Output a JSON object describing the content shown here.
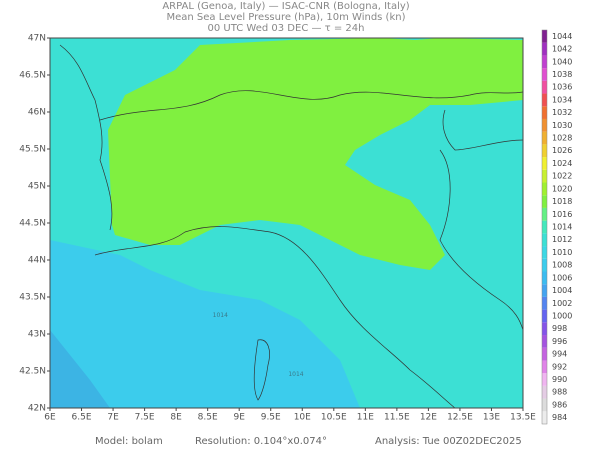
{
  "header": {
    "lines": [
      "ARPAL (Genoa, Italy)  —  ISAC-CNR (Bologna, Italy)",
      "Mean Sea Level Pressure (hPa), 10m Winds (kn)",
      "00 UTC Wed 03 DEC  —  τ = 24h"
    ]
  },
  "map": {
    "lonlim": [
      6,
      13.5
    ],
    "latlim": [
      42,
      47
    ],
    "lon_ticks": [
      {
        "value": 6,
        "label": "6E"
      },
      {
        "value": 6.5,
        "label": "6.5E"
      },
      {
        "value": 7,
        "label": "7E"
      },
      {
        "value": 7.5,
        "label": "7.5E"
      },
      {
        "value": 8,
        "label": "8E"
      },
      {
        "value": 8.5,
        "label": "8.5E"
      },
      {
        "value": 9,
        "label": "9E"
      },
      {
        "value": 9.5,
        "label": "9.5E"
      },
      {
        "value": 10,
        "label": "10E"
      },
      {
        "value": 10.5,
        "label": "10.5E"
      },
      {
        "value": 11,
        "label": "11E"
      },
      {
        "value": 11.5,
        "label": "11.5E"
      },
      {
        "value": 12,
        "label": "12E"
      },
      {
        "value": 12.5,
        "label": "12.5E"
      },
      {
        "value": 13,
        "label": "13E"
      },
      {
        "value": 13.5,
        "label": "13.5E"
      }
    ],
    "lat_ticks": [
      {
        "value": 42,
        "label": "42N"
      },
      {
        "value": 42.5,
        "label": "42.5N"
      },
      {
        "value": 43,
        "label": "43N"
      },
      {
        "value": 43.5,
        "label": "43.5N"
      },
      {
        "value": 44,
        "label": "44N"
      },
      {
        "value": 44.5,
        "label": "44.5N"
      },
      {
        "value": 45,
        "label": "45N"
      },
      {
        "value": 45.5,
        "label": "45.5N"
      },
      {
        "value": 46,
        "label": "46N"
      },
      {
        "value": 46.5,
        "label": "46.5N"
      },
      {
        "value": 47,
        "label": "47N"
      }
    ],
    "contour_labels": [
      {
        "lon": 8.7,
        "lat": 43.25,
        "label": "1014"
      },
      {
        "lon": 9.9,
        "lat": 42.45,
        "label": "1014"
      }
    ]
  },
  "colorbar": {
    "levels": [
      984,
      986,
      988,
      990,
      992,
      994,
      996,
      998,
      1000,
      1002,
      1004,
      1006,
      1008,
      1010,
      1012,
      1014,
      1016,
      1018,
      1020,
      1022,
      1024,
      1026,
      1028,
      1030,
      1032,
      1034,
      1036,
      1038,
      1040,
      1042,
      1044
    ],
    "colors": [
      "#ececec",
      "#dcdcdc",
      "#e4cce4",
      "#f0b4f0",
      "#e084e8",
      "#c464e0",
      "#a454e0",
      "#8454e8",
      "#6464f0",
      "#5484f0",
      "#44a4f0",
      "#3cbcf0",
      "#3cccec",
      "#3cd8e4",
      "#3ce0d4",
      "#44e8bc",
      "#64f084",
      "#80f040",
      "#a0f030",
      "#c8f030",
      "#f0f030",
      "#f0d030",
      "#f0b030",
      "#f09030",
      "#f07030",
      "#f05050",
      "#f050a0",
      "#e050d0",
      "#c040d0",
      "#a030c0",
      "#802090"
    ]
  },
  "footer": {
    "model": "Model: bolam",
    "resolution": "Resolution: 0.104°x0.074°",
    "analysis": "Analysis: Tue 00Z02DEC2025"
  }
}
